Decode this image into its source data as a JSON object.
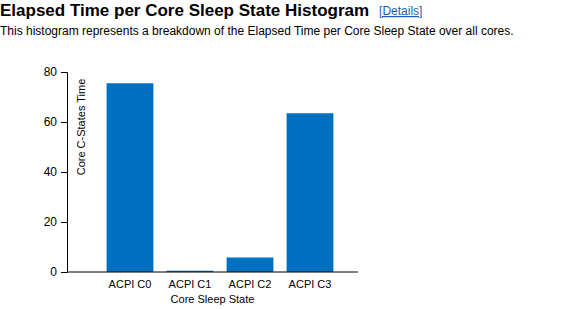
{
  "chart_data": {
    "type": "bar",
    "title": "Elapsed Time per Core Sleep State Histogram",
    "subtitle": "This histogram represents a breakdown of the Elapsed Time per Core Sleep State over all cores.",
    "annotations": [
      "[Details]"
    ],
    "x_label": "Core Sleep State",
    "y_label": "Core C-States Time",
    "categories": [
      "ACPI C0",
      "ACPI C1",
      "ACPI C2",
      "ACPI C3"
    ],
    "values": [
      75.5,
      0.5,
      5.8,
      63.5
    ],
    "color": "#0070c0",
    "ylim": [
      0,
      80
    ],
    "yticks": [
      0,
      20,
      40,
      60,
      80
    ],
    "grid": false
  }
}
